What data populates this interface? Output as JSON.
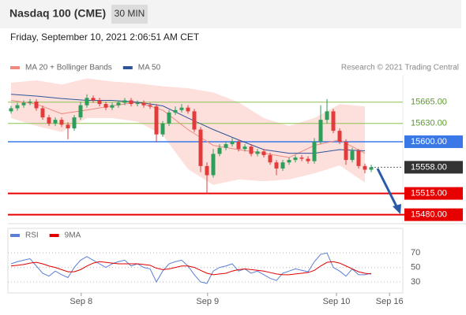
{
  "chart_data": [
    {
      "type": "candlestick",
      "title": "Nasdaq 100 (CME)",
      "timeframe": "30 MIN",
      "subtitle": "Friday, September 10, 2021 2:06:51 AM CET",
      "attribution": "Research © 2021 Trading Central",
      "up_color": "#2e9e5b",
      "down_color": "#e23b3b",
      "xlim": [
        -0.5,
        62
      ],
      "ylim": [
        15464,
        15710
      ],
      "x": [
        0,
        1,
        2,
        3,
        4,
        5,
        6,
        7,
        8,
        9,
        10,
        11,
        12,
        13,
        14,
        15,
        16,
        17,
        18,
        19,
        20,
        21,
        22,
        23,
        24,
        25,
        26,
        27,
        28,
        29,
        30,
        31,
        32,
        33,
        34,
        35,
        36,
        37,
        38,
        39,
        40,
        41,
        42,
        43,
        44,
        45,
        46,
        47,
        48,
        49,
        50,
        51,
        52,
        53,
        54,
        55,
        56,
        57
      ],
      "open": [
        15650,
        15655,
        15660,
        15664,
        15666,
        15655,
        15640,
        15630,
        15636,
        15628,
        15622,
        15640,
        15660,
        15672,
        15668,
        15662,
        15656,
        15660,
        15664,
        15668,
        15662,
        15664,
        15660,
        15658,
        15612,
        15630,
        15648,
        15652,
        15656,
        15650,
        15620,
        15560,
        15545,
        15580,
        15590,
        15596,
        15600,
        15588,
        15592,
        15580,
        15584,
        15578,
        15566,
        15556,
        15566,
        15570,
        15574,
        15572,
        15568,
        15600,
        15636,
        15650,
        15618,
        15600,
        15570,
        15585,
        15560,
        15554
      ],
      "high": [
        15659,
        15664,
        15668,
        15670,
        15670,
        15659,
        15644,
        15640,
        15640,
        15632,
        15644,
        15666,
        15678,
        15676,
        15672,
        15666,
        15664,
        15668,
        15672,
        15672,
        15668,
        15668,
        15664,
        15662,
        15634,
        15652,
        15658,
        15662,
        15660,
        15654,
        15624,
        15566,
        15588,
        15596,
        15600,
        15606,
        15604,
        15596,
        15596,
        15588,
        15588,
        15582,
        15570,
        15570,
        15574,
        15578,
        15578,
        15576,
        15606,
        15660,
        15670,
        15654,
        15622,
        15604,
        15590,
        15588,
        15564,
        15562
      ],
      "low": [
        15646,
        15651,
        15656,
        15660,
        15651,
        15636,
        15626,
        15626,
        15624,
        15604,
        15618,
        15636,
        15656,
        15664,
        15658,
        15652,
        15652,
        15656,
        15660,
        15658,
        15658,
        15656,
        15654,
        15600,
        15608,
        15626,
        15644,
        15648,
        15646,
        15616,
        15550,
        15515,
        15541,
        15576,
        15586,
        15592,
        15584,
        15584,
        15576,
        15576,
        15574,
        15562,
        15545,
        15552,
        15562,
        15566,
        15568,
        15564,
        15564,
        15596,
        15630,
        15614,
        15596,
        15562,
        15566,
        15556,
        15548,
        15550
      ],
      "close": [
        15655,
        15660,
        15664,
        15666,
        15655,
        15640,
        15630,
        15636,
        15628,
        15622,
        15640,
        15660,
        15672,
        15668,
        15662,
        15656,
        15660,
        15664,
        15668,
        15662,
        15664,
        15660,
        15658,
        15612,
        15630,
        15648,
        15652,
        15656,
        15650,
        15620,
        15560,
        15545,
        15580,
        15590,
        15596,
        15600,
        15588,
        15592,
        15580,
        15584,
        15578,
        15566,
        15556,
        15566,
        15570,
        15574,
        15572,
        15568,
        15600,
        15636,
        15650,
        15618,
        15600,
        15570,
        15585,
        15560,
        15554,
        15558
      ],
      "series": [
        {
          "name": "MA 20 + Bollinger Bands",
          "color": "#f08a80",
          "band_color": "#fde0dc",
          "x": [
            0,
            4,
            8,
            12,
            16,
            20,
            24,
            28,
            32,
            36,
            40,
            44,
            48,
            52,
            56
          ],
          "values": [
            15668,
            15662,
            15646,
            15652,
            15659,
            15665,
            15652,
            15620,
            15594,
            15587,
            15581,
            15574,
            15594,
            15603,
            15581
          ],
          "upper": [
            15697,
            15701,
            15694,
            15704,
            15699,
            15696,
            15691,
            15688,
            15681,
            15665,
            15639,
            15626,
            15639,
            15662,
            15658
          ],
          "lower": [
            15639,
            15626,
            15616,
            15639,
            15639,
            15633,
            15611,
            15555,
            15529,
            15538,
            15535,
            15538,
            15548,
            15561,
            15533
          ]
        },
        {
          "name": "MA 50",
          "color": "#2f5597",
          "x": [
            0,
            4,
            8,
            12,
            16,
            20,
            24,
            28,
            32,
            36,
            40,
            44,
            48,
            52,
            56
          ],
          "values": [
            15678,
            15675,
            15671,
            15668,
            15668,
            15665,
            15659,
            15639,
            15620,
            15603,
            15587,
            15581,
            15581,
            15587,
            15585
          ]
        }
      ],
      "levels": [
        {
          "value": 15665,
          "label": "15665.00",
          "color": "#8cc152",
          "text_color": "#5a9a2a",
          "style": "text"
        },
        {
          "value": 15630,
          "label": "15630.00",
          "color": "#8cc152",
          "text_color": "#5a9a2a",
          "style": "text"
        },
        {
          "value": 15600,
          "label": "15600.00",
          "color": "#3b78e7",
          "text_color": "#ffffff",
          "style": "box"
        },
        {
          "value": 15558,
          "label": "15558.00",
          "color": "#333333",
          "text_color": "#ffffff",
          "style": "current"
        },
        {
          "value": 15515,
          "label": "15515.00",
          "color": "#e60000",
          "text_color": "#ffffff",
          "style": "box"
        },
        {
          "value": 15480,
          "label": "15480.00",
          "color": "#e60000",
          "text_color": "#ffffff",
          "style": "box"
        }
      ]
    },
    {
      "type": "line",
      "xlim": [
        -0.5,
        62
      ],
      "ylim": [
        17,
        93
      ],
      "yticks": [
        70,
        50,
        30
      ],
      "xticks": [
        {
          "value": 11.1,
          "label": "Sep 8"
        },
        {
          "value": 31.1,
          "label": "Sep 9"
        },
        {
          "value": 51.5,
          "label": "Sep 10"
        },
        {
          "value": 59.9,
          "label": "Sep 16"
        }
      ],
      "series": [
        {
          "name": "RSI",
          "color": "#5b7fd6",
          "values": [
            55,
            58,
            60,
            62,
            52,
            42,
            38,
            45,
            40,
            36,
            50,
            60,
            65,
            60,
            55,
            50,
            55,
            58,
            60,
            52,
            55,
            50,
            48,
            30,
            45,
            55,
            58,
            60,
            52,
            40,
            30,
            28,
            45,
            50,
            52,
            55,
            45,
            48,
            42,
            45,
            40,
            35,
            32,
            42,
            45,
            48,
            46,
            44,
            58,
            68,
            70,
            50,
            45,
            38,
            48,
            40,
            40,
            42
          ]
        },
        {
          "name": "9MA",
          "color": "#e00000",
          "values": [
            52,
            53,
            54,
            56,
            57,
            55,
            52,
            50,
            47,
            44,
            44,
            47,
            52,
            56,
            58,
            57,
            56,
            55,
            55,
            55,
            55,
            54,
            53,
            49,
            47,
            48,
            50,
            52,
            52,
            50,
            46,
            42,
            40,
            41,
            42,
            45,
            47,
            48,
            47,
            46,
            45,
            43,
            41,
            40,
            40,
            41,
            42,
            43,
            46,
            52,
            57,
            58,
            56,
            52,
            48,
            44,
            42,
            41
          ]
        }
      ]
    }
  ]
}
